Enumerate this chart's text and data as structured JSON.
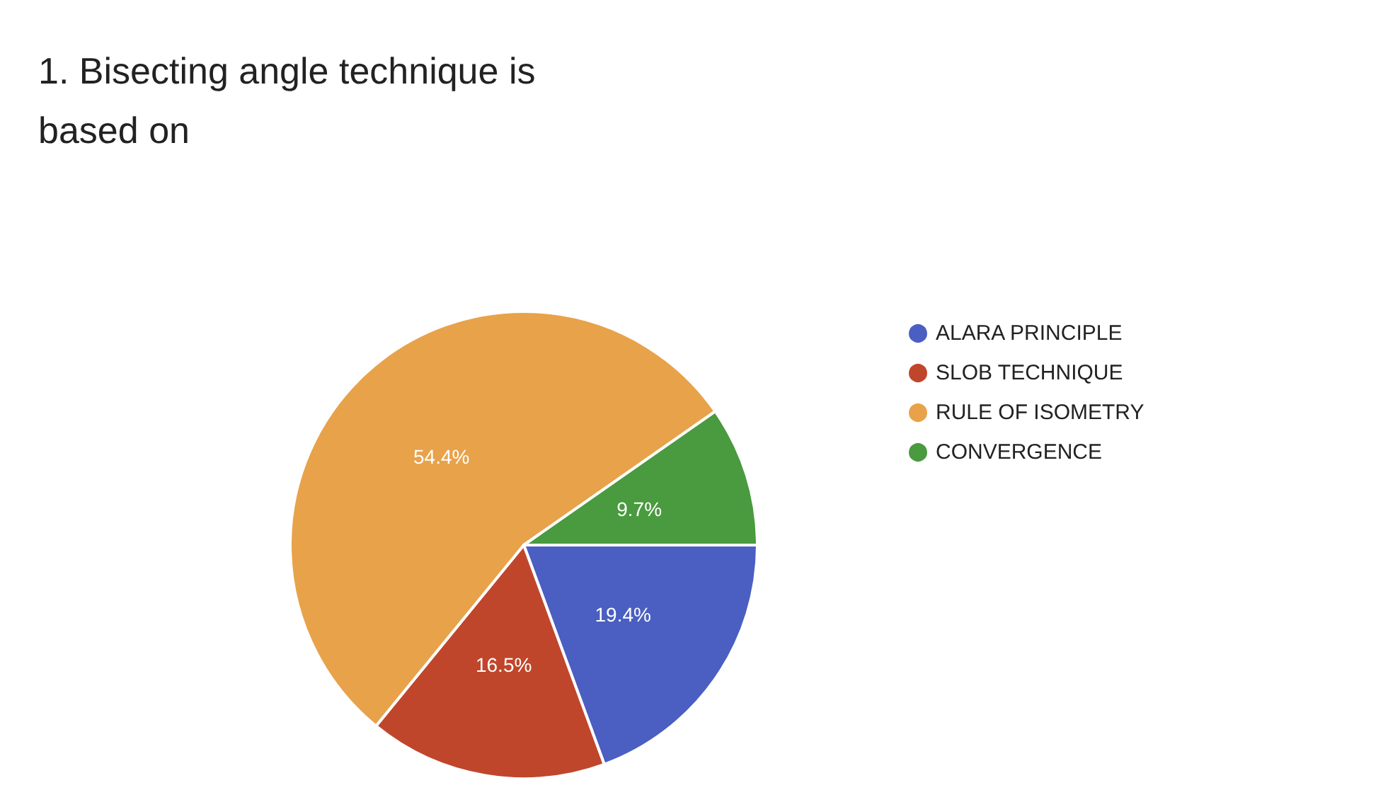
{
  "chart_data": {
    "type": "pie",
    "title": "1. Bisecting angle technique is\nbased on",
    "categories": [
      "ALARA PRINCIPLE",
      "SLOB TECHNIQUE",
      "RULE OF ISOMETRY",
      "CONVERGENCE"
    ],
    "values": [
      19.4,
      16.5,
      54.4,
      9.7
    ],
    "colors": [
      "#4a5fc1",
      "#c0462b",
      "#e8a24a",
      "#4a9a3f"
    ],
    "value_labels": [
      "19.4%",
      "16.5%",
      "54.4%",
      "9.7%"
    ],
    "legend": "right"
  }
}
